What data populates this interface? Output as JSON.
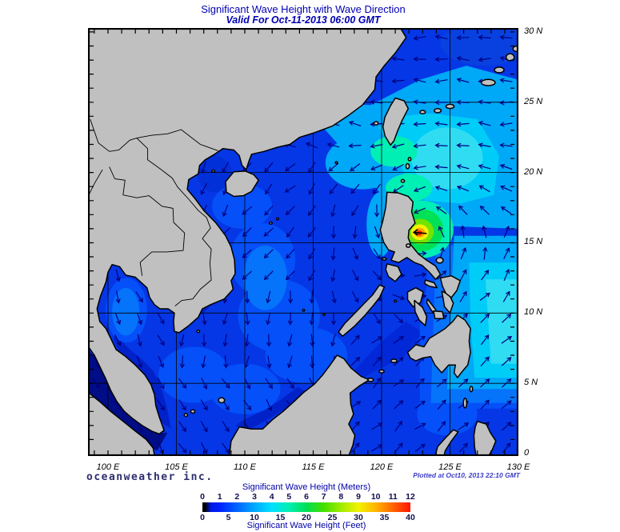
{
  "title": "Significant Wave Height with Wave Direction",
  "subtitle": "Valid For Oct-11-2013 06:00 GMT",
  "branding": "oceanweather inc.",
  "plotted_note": "Plotted at Oct10, 2013 22:10 GMT",
  "axes": {
    "lon_ticks": [
      100,
      105,
      110,
      115,
      120,
      125,
      130
    ],
    "lon_labels": [
      "100 E",
      "105 E",
      "110 E",
      "115 E",
      "120 E",
      "125 E",
      "130 E"
    ],
    "lat_ticks": [
      30,
      25,
      20,
      15,
      10,
      5,
      0
    ],
    "lat_labels": [
      "30 N",
      "25 N",
      "20 N",
      "15 N",
      "10 N",
      "5 N",
      "0"
    ]
  },
  "colorbar": {
    "title_meters": "Significant Wave Height (Meters)",
    "title_feet": "Significant Wave Height (Feet)",
    "meters_ticks": [
      "0",
      "1",
      "2",
      "3",
      "4",
      "5",
      "6",
      "7",
      "8",
      "9",
      "10",
      "11",
      "12"
    ],
    "feet_ticks": [
      "0",
      "5",
      "10",
      "15",
      "20",
      "25",
      "30",
      "35",
      "40"
    ],
    "colors": [
      "#000000",
      "#0020ff",
      "#0064ff",
      "#00a8ff",
      "#00e0ff",
      "#00efb0",
      "#00e055",
      "#46df00",
      "#a0ec00",
      "#f2f200",
      "#ffb400",
      "#ff6400",
      "#ff1400"
    ]
  },
  "map": {
    "grid_interval_deg": 5,
    "storm_center": {
      "lon": 122.8,
      "lat": 15.7
    },
    "colors": {
      "land": "#c0c0c0",
      "coast": "#000000",
      "arrow": "#000080",
      "ocean_base": "#0537e6",
      "grid": "#000000"
    }
  },
  "chart_data": {
    "type": "heatmap",
    "title": "Significant Wave Height with Wave Direction",
    "valid_time": "Oct-11-2013 06:00 GMT",
    "plotted_time": "Oct10, 2013 22:10 GMT",
    "x_axis": {
      "unit": "degrees East",
      "range": [
        98.5,
        130
      ],
      "ticks": [
        100,
        105,
        110,
        115,
        120,
        125,
        130
      ]
    },
    "y_axis": {
      "unit": "degrees North",
      "range": [
        0,
        30.3
      ],
      "ticks": [
        0,
        5,
        10,
        15,
        20,
        25,
        30
      ]
    },
    "colorbar_meters": [
      0,
      1,
      2,
      3,
      4,
      5,
      6,
      7,
      8,
      9,
      10,
      11,
      12
    ],
    "colorbar_feet": [
      0,
      5,
      10,
      15,
      20,
      25,
      30,
      35,
      40
    ],
    "peak": {
      "lon": 122.8,
      "lat": 15.7,
      "significant_wave_height_m": 12
    },
    "arrows_meaning": "wave direction"
  }
}
